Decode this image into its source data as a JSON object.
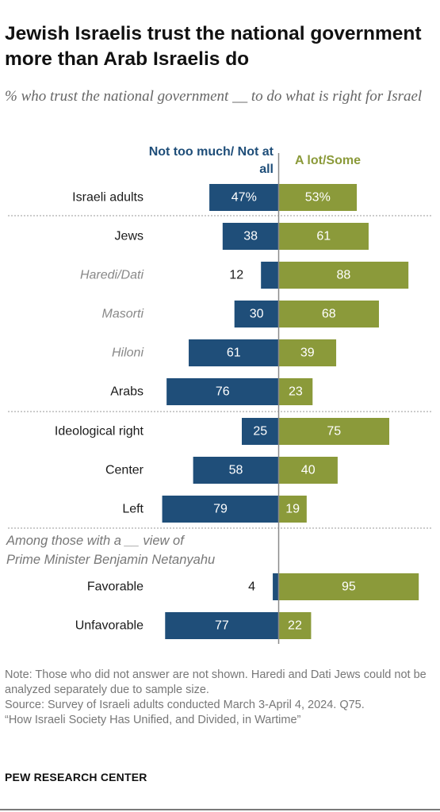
{
  "title": "Jewish Israelis trust the national government more than Arab Israelis do",
  "subtitle": "% who trust the national government __ to do what is right for Israel",
  "chart_data": {
    "type": "bar",
    "orientation": "diverging-horizontal",
    "series": [
      {
        "name": "Not too much/ Not at all",
        "color": "#1f4e79"
      },
      {
        "name": "A lot/Some",
        "color": "#8b9a3a"
      }
    ],
    "note_row": "Among those with a __ view of Prime Minister Benjamin Netanyahu",
    "rows": [
      {
        "label": "Israeli adults",
        "italic": false,
        "neg": 47,
        "pos": 53,
        "neg_label": "47%",
        "pos_label": "53%"
      },
      {
        "label": "Jews",
        "italic": false,
        "neg": 38,
        "pos": 61,
        "neg_label": "38",
        "pos_label": "61"
      },
      {
        "label": "Haredi/Dati",
        "italic": true,
        "neg": 12,
        "pos": 88,
        "neg_label": "12",
        "pos_label": "88"
      },
      {
        "label": "Masorti",
        "italic": true,
        "neg": 30,
        "pos": 68,
        "neg_label": "30",
        "pos_label": "68"
      },
      {
        "label": "Hiloni",
        "italic": true,
        "neg": 61,
        "pos": 39,
        "neg_label": "61",
        "pos_label": "39"
      },
      {
        "label": "Arabs",
        "italic": false,
        "neg": 76,
        "pos": 23,
        "neg_label": "76",
        "pos_label": "23"
      },
      {
        "label": "Ideological right",
        "italic": false,
        "neg": 25,
        "pos": 75,
        "neg_label": "25",
        "pos_label": "75"
      },
      {
        "label": "Center",
        "italic": false,
        "neg": 58,
        "pos": 40,
        "neg_label": "58",
        "pos_label": "40"
      },
      {
        "label": "Left",
        "italic": false,
        "neg": 79,
        "pos": 19,
        "neg_label": "79",
        "pos_label": "19"
      },
      {
        "label": "Favorable",
        "italic": false,
        "neg": 4,
        "pos": 95,
        "neg_label": "4",
        "pos_label": "95"
      },
      {
        "label": "Unfavorable",
        "italic": false,
        "neg": 77,
        "pos": 22,
        "neg_label": "77",
        "pos_label": "22"
      }
    ]
  },
  "footer": {
    "note": "Note: Those who did not answer are not shown. Haredi and Dati Jews could not be analyzed separately due to sample size.",
    "source": "Source: Survey of Israeli adults conducted March 3-April 4, 2024. Q75.",
    "report": "“How Israeli Society Has Unified, and Divided, in Wartime”",
    "brand": "PEW RESEARCH CENTER"
  }
}
